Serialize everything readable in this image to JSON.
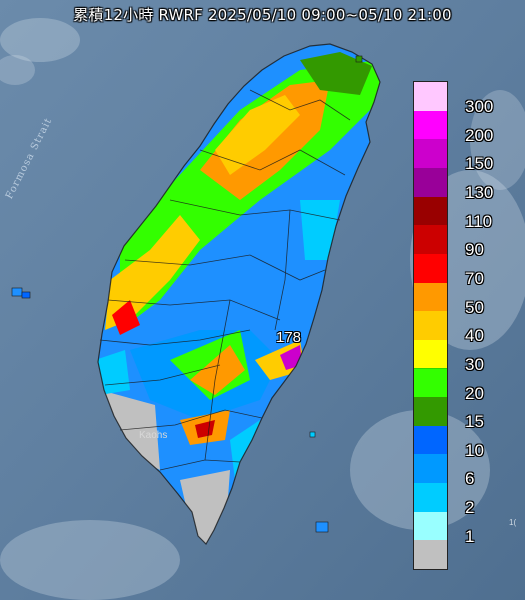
{
  "title": "累積12小時 RWRF 2025/05/10 09:00~05/10 21:00",
  "map": {
    "sea_label": "Formosa Strait",
    "city_label": "Kaohs",
    "max_value_label": "178",
    "edge_coordinate": "1("
  },
  "legend": {
    "items": [
      {
        "label": "300",
        "color": "#ffc8ff"
      },
      {
        "label": "200",
        "color": "#ff00ff"
      },
      {
        "label": "150",
        "color": "#cc00cc"
      },
      {
        "label": "130",
        "color": "#990099"
      },
      {
        "label": "110",
        "color": "#990000"
      },
      {
        "label": "90",
        "color": "#cc0000"
      },
      {
        "label": "70",
        "color": "#ff0000"
      },
      {
        "label": "50",
        "color": "#ff9900"
      },
      {
        "label": "40",
        "color": "#ffcc00"
      },
      {
        "label": "30",
        "color": "#ffff00"
      },
      {
        "label": "20",
        "color": "#33ff00"
      },
      {
        "label": "15",
        "color": "#339900"
      },
      {
        "label": "10",
        "color": "#0066ff"
      },
      {
        "label": "6",
        "color": "#0099ff"
      },
      {
        "label": "2",
        "color": "#00ccff"
      },
      {
        "label": "1",
        "color": "#99ffff"
      },
      {
        "label": "",
        "color": "#c0c0c0"
      }
    ]
  }
}
